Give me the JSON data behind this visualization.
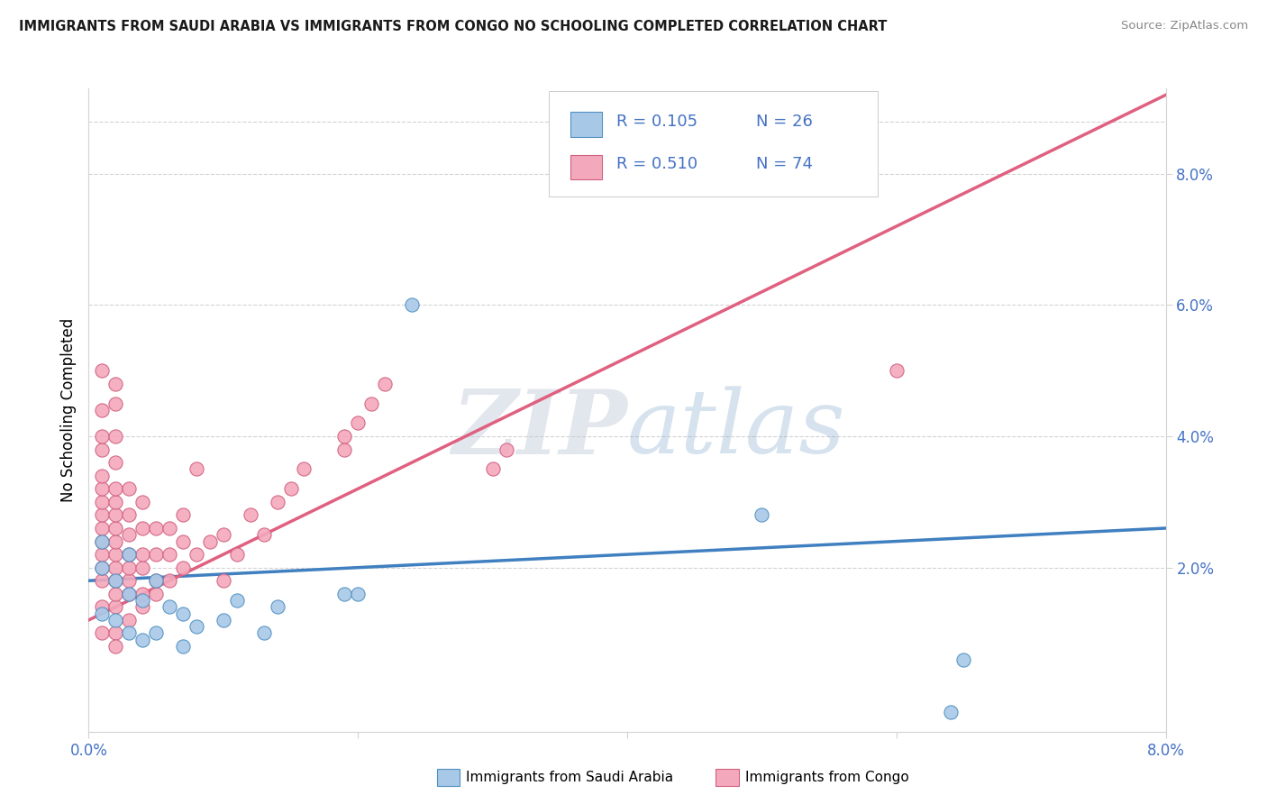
{
  "title": "IMMIGRANTS FROM SAUDI ARABIA VS IMMIGRANTS FROM CONGO NO SCHOOLING COMPLETED CORRELATION CHART",
  "source": "Source: ZipAtlas.com",
  "ylabel": "No Schooling Completed",
  "right_yticks": [
    0.02,
    0.04,
    0.06,
    0.08
  ],
  "right_yticklabels": [
    "2.0%",
    "4.0%",
    "6.0%",
    "8.0%"
  ],
  "xlim": [
    0.0,
    0.08
  ],
  "ylim": [
    -0.005,
    0.093
  ],
  "watermark": "ZIPatlas",
  "color_saudi": "#a8c8e8",
  "color_congo": "#f4a8bc",
  "color_saudi_edge": "#5090c0",
  "color_congo_edge": "#d06080",
  "color_saudi_line": "#4080c0",
  "color_congo_line": "#e06080",
  "color_legend_text": "#4472c4",
  "legend_r1": "R = 0.105",
  "legend_n1": "N = 26",
  "legend_r2": "R = 0.510",
  "legend_n2": "N = 74",
  "saudi_trendline_x": [
    0.0,
    0.08
  ],
  "saudi_trendline_y": [
    0.018,
    0.026
  ],
  "congo_trendline_x": [
    0.0,
    0.08
  ],
  "congo_trendline_y": [
    0.012,
    0.092
  ],
  "saudi_x": [
    0.001,
    0.001,
    0.001,
    0.002,
    0.002,
    0.003,
    0.003,
    0.003,
    0.004,
    0.004,
    0.005,
    0.005,
    0.006,
    0.007,
    0.007,
    0.008,
    0.01,
    0.011,
    0.013,
    0.014,
    0.019,
    0.02,
    0.024,
    0.05,
    0.064,
    0.065
  ],
  "saudi_y": [
    0.013,
    0.02,
    0.024,
    0.012,
    0.018,
    0.01,
    0.016,
    0.022,
    0.009,
    0.015,
    0.01,
    0.018,
    0.014,
    0.008,
    0.013,
    0.011,
    0.012,
    0.015,
    0.01,
    0.014,
    0.016,
    0.016,
    0.06,
    0.028,
    -0.002,
    0.006
  ],
  "congo_x": [
    0.001,
    0.001,
    0.001,
    0.001,
    0.001,
    0.001,
    0.001,
    0.001,
    0.001,
    0.001,
    0.001,
    0.001,
    0.001,
    0.001,
    0.001,
    0.002,
    0.002,
    0.002,
    0.002,
    0.002,
    0.002,
    0.002,
    0.002,
    0.002,
    0.002,
    0.002,
    0.002,
    0.002,
    0.002,
    0.002,
    0.003,
    0.003,
    0.003,
    0.003,
    0.003,
    0.003,
    0.003,
    0.003,
    0.004,
    0.004,
    0.004,
    0.004,
    0.004,
    0.004,
    0.005,
    0.005,
    0.005,
    0.005,
    0.006,
    0.006,
    0.006,
    0.007,
    0.007,
    0.007,
    0.008,
    0.008,
    0.009,
    0.01,
    0.01,
    0.011,
    0.012,
    0.013,
    0.014,
    0.015,
    0.016,
    0.019,
    0.019,
    0.02,
    0.021,
    0.022,
    0.03,
    0.031,
    0.06,
    0.002
  ],
  "congo_y": [
    0.01,
    0.014,
    0.018,
    0.02,
    0.022,
    0.024,
    0.026,
    0.028,
    0.03,
    0.032,
    0.034,
    0.038,
    0.04,
    0.044,
    0.05,
    0.01,
    0.014,
    0.016,
    0.018,
    0.02,
    0.022,
    0.024,
    0.026,
    0.028,
    0.03,
    0.032,
    0.036,
    0.04,
    0.045,
    0.048,
    0.012,
    0.016,
    0.018,
    0.02,
    0.022,
    0.025,
    0.028,
    0.032,
    0.014,
    0.016,
    0.02,
    0.022,
    0.026,
    0.03,
    0.016,
    0.018,
    0.022,
    0.026,
    0.018,
    0.022,
    0.026,
    0.02,
    0.024,
    0.028,
    0.022,
    0.035,
    0.024,
    0.018,
    0.025,
    0.022,
    0.028,
    0.025,
    0.03,
    0.032,
    0.035,
    0.038,
    0.04,
    0.042,
    0.045,
    0.048,
    0.035,
    0.038,
    0.05,
    0.008
  ]
}
